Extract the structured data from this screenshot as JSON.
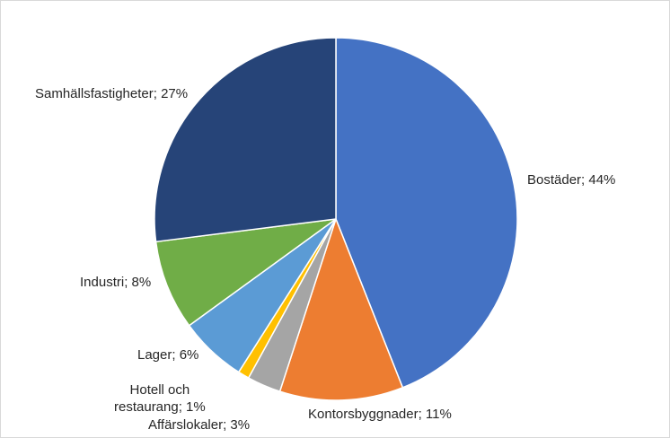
{
  "chart_data": {
    "type": "pie",
    "title": "",
    "slices": [
      {
        "label": "Bostäder",
        "value": 44,
        "text": "Bostäder; 44%",
        "color": "#4472C4"
      },
      {
        "label": "Kontorsbyggnader",
        "value": 11,
        "text": "Kontorsbyggnader; 11%",
        "color": "#ED7D31"
      },
      {
        "label": "Affärslokaler",
        "value": 3,
        "text": "Affärslokaler; 3%",
        "color": "#A5A5A5"
      },
      {
        "label": "Hotell och restaurang",
        "value": 1,
        "text": "Hotell och\nrestaurang; 1%",
        "color": "#FFC000"
      },
      {
        "label": "Lager",
        "value": 6,
        "text": "Lager; 6%",
        "color": "#5B9BD5"
      },
      {
        "label": "Industri",
        "value": 8,
        "text": "Industri; 8%",
        "color": "#70AD47"
      },
      {
        "label": "Samhällsfastigheter",
        "value": 27,
        "text": "Samhällsfastigheter; 27%",
        "color": "#264478"
      }
    ]
  }
}
